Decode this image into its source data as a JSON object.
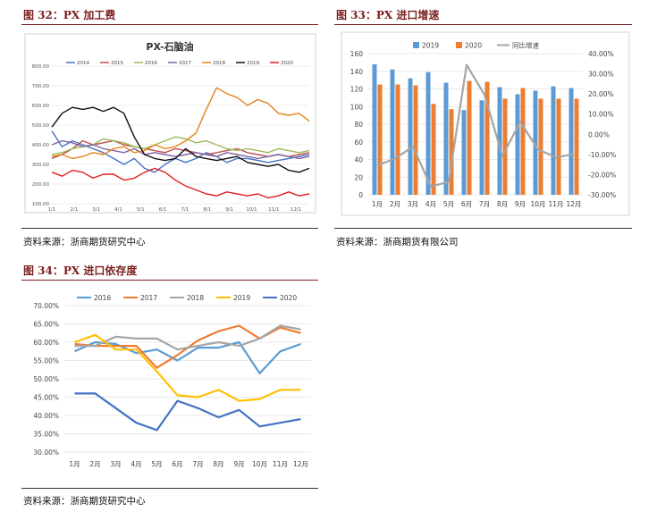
{
  "figures": {
    "fig32": {
      "title": "图 32：PX 加工费",
      "source": "资料来源：浙商期货研究中心"
    },
    "fig33": {
      "title": "图 33：PX 进口增速",
      "source": "资料来源：浙商期货有限公司"
    },
    "fig34": {
      "title": "图 34：PX 进口依存度",
      "source": "资料来源：浙商期货研究中心"
    }
  },
  "chart_data": [
    {
      "id": "px-processing-fee",
      "type": "line",
      "title": "PX-石脑油",
      "ylim": [
        100,
        800
      ],
      "yticks": [
        "100.00",
        "200.00",
        "300.00",
        "400.00",
        "500.00",
        "600.00",
        "700.00",
        "800.00"
      ],
      "xticks": [
        "1/1",
        "2/1",
        "3/1",
        "4/1",
        "5/1",
        "6/1",
        "7/1",
        "8/1",
        "9/1",
        "10/1",
        "11/1",
        "12/1"
      ],
      "legend_position": "top",
      "series": [
        {
          "name": "2014",
          "color": "#4472c4",
          "values": [
            470,
            390,
            420,
            400,
            380,
            360,
            330,
            300,
            330,
            280,
            260,
            300,
            330,
            310,
            330,
            360,
            340,
            310,
            330,
            330,
            320,
            310,
            320,
            330,
            340,
            350
          ]
        },
        {
          "name": "2015",
          "color": "#c0504d",
          "values": [
            330,
            350,
            380,
            420,
            400,
            410,
            420,
            400,
            390,
            380,
            370,
            360,
            380,
            370,
            360,
            350,
            360,
            370,
            380,
            360,
            350,
            340,
            350,
            340,
            350,
            360
          ]
        },
        {
          "name": "2016",
          "color": "#9bbb59",
          "values": [
            350,
            360,
            380,
            390,
            400,
            430,
            420,
            410,
            390,
            380,
            400,
            420,
            440,
            430,
            410,
            420,
            400,
            380,
            370,
            380,
            370,
            360,
            380,
            370,
            360,
            370
          ]
        },
        {
          "name": "2017",
          "color": "#8064a2",
          "values": [
            400,
            420,
            410,
            390,
            400,
            380,
            370,
            360,
            380,
            350,
            360,
            350,
            340,
            350,
            360,
            350,
            340,
            360,
            350,
            340,
            330,
            340,
            350,
            340,
            330,
            340
          ]
        },
        {
          "name": "2018",
          "color": "#e3841a",
          "values": [
            340,
            350,
            330,
            340,
            360,
            350,
            380,
            390,
            360,
            370,
            400,
            380,
            390,
            420,
            460,
            580,
            690,
            660,
            640,
            600,
            630,
            610,
            560,
            550,
            560,
            520
          ]
        },
        {
          "name": "2019",
          "color": "#111111",
          "values": [
            490,
            560,
            590,
            580,
            590,
            570,
            590,
            560,
            440,
            350,
            330,
            320,
            330,
            380,
            340,
            330,
            320,
            330,
            340,
            310,
            300,
            290,
            300,
            270,
            260,
            280
          ]
        },
        {
          "name": "2020",
          "color": "#e02020",
          "values": [
            260,
            240,
            270,
            260,
            230,
            250,
            250,
            220,
            230,
            260,
            280,
            260,
            220,
            190,
            170,
            150,
            140,
            160,
            150,
            140,
            150,
            130,
            140,
            160,
            140,
            150
          ]
        }
      ]
    },
    {
      "id": "px-import-growth",
      "type": "bar",
      "categories": [
        "1月",
        "2月",
        "3月",
        "4月",
        "5月",
        "6月",
        "7月",
        "8月",
        "9月",
        "10月",
        "11月",
        "12月"
      ],
      "ylim": [
        0,
        160
      ],
      "yticks": [
        "0",
        "20",
        "40",
        "60",
        "80",
        "100",
        "120",
        "140",
        "160"
      ],
      "y2lim": [
        -30,
        40
      ],
      "y2ticks": [
        "-30.00%",
        "-20.00%",
        "-10.00%",
        "0.00%",
        "10.00%",
        "20.00%",
        "30.00%",
        "40.00%"
      ],
      "legend_position": "top",
      "series": [
        {
          "name": "2019",
          "color": "#5b9bd5",
          "values": [
            148,
            142,
            132,
            139,
            127,
            96,
            107,
            122,
            114,
            118,
            123,
            121
          ]
        },
        {
          "name": "2020",
          "color": "#ed7d31",
          "values": [
            125,
            125,
            124,
            103,
            97,
            129,
            128,
            109,
            121,
            109,
            109,
            109
          ]
        },
        {
          "name": "同比增速",
          "color": "#a5a5a5",
          "axis": "right",
          "values": [
            -15.5,
            -12,
            -6.1,
            -25.9,
            -23.6,
            34.4,
            19.6,
            -10.7,
            6.1,
            -7.6,
            -11.4,
            -9.9
          ]
        }
      ]
    },
    {
      "id": "px-import-dependence",
      "type": "line",
      "categories": [
        "1月",
        "2月",
        "3月",
        "4月",
        "5月",
        "6月",
        "7月",
        "8月",
        "9月",
        "10月",
        "11月",
        "12月"
      ],
      "ylim": [
        30,
        70
      ],
      "yticks": [
        "30.00%",
        "35.00%",
        "40.00%",
        "45.00%",
        "50.00%",
        "55.00%",
        "60.00%",
        "65.00%",
        "70.00%"
      ],
      "legend_position": "top",
      "series": [
        {
          "name": "2016",
          "color": "#5b9bd5",
          "values": [
            57.5,
            60.0,
            59.5,
            57.0,
            58.0,
            55.0,
            58.5,
            58.5,
            60.0,
            51.5,
            57.5,
            59.5
          ]
        },
        {
          "name": "2017",
          "color": "#ed7d31",
          "values": [
            59.5,
            59.0,
            59.0,
            59.0,
            53.0,
            56.5,
            60.5,
            63.0,
            64.5,
            61.0,
            64.0,
            62.5
          ]
        },
        {
          "name": "2018",
          "color": "#a5a5a5",
          "values": [
            59.0,
            59.0,
            61.5,
            61.0,
            61.0,
            58.0,
            59.0,
            60.0,
            59.0,
            61.0,
            64.5,
            63.5
          ]
        },
        {
          "name": "2019",
          "color": "#ffc000",
          "values": [
            60.0,
            62.0,
            58.0,
            58.0,
            52.0,
            45.5,
            45.0,
            47.0,
            44.0,
            44.5,
            47.0,
            47.0
          ]
        },
        {
          "name": "2020",
          "color": "#4472c4",
          "values": [
            46.0,
            46.0,
            42.0,
            38.0,
            36.0,
            44.0,
            42.0,
            39.5,
            41.5,
            37.0,
            38.0,
            39.0
          ]
        }
      ]
    }
  ]
}
